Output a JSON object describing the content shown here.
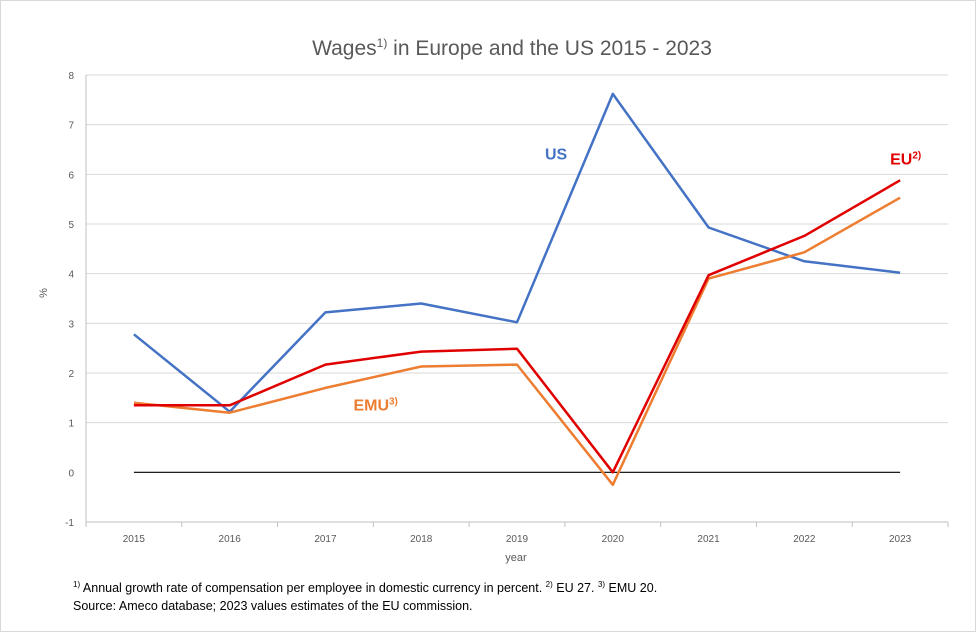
{
  "chart_data": {
    "type": "line",
    "title": "Wages",
    "title_sup": "1)",
    "title_rest": " in Europe and the US 2015 - 2023",
    "xlabel": "year",
    "ylabel": "%",
    "ylim": [
      -1,
      8
    ],
    "yticks": [
      "-1",
      "0",
      "1",
      "2",
      "3",
      "4",
      "5",
      "6",
      "7",
      "8"
    ],
    "categories": [
      "2015",
      "2016",
      "2017",
      "2018",
      "2019",
      "2020",
      "2021",
      "2022",
      "2023"
    ],
    "grid": "horizontal",
    "series": [
      {
        "name": "US",
        "sup": "",
        "color": "#4472c4",
        "values": [
          2.78,
          1.22,
          3.22,
          3.4,
          3.02,
          7.62,
          4.93,
          4.25,
          4.02
        ]
      },
      {
        "name": "EMU",
        "sup": "3)",
        "color": "#ed7d31",
        "values": [
          1.4,
          1.2,
          1.7,
          2.13,
          2.17,
          -0.25,
          3.9,
          4.43,
          5.53
        ]
      },
      {
        "name": "EU",
        "sup": "2)",
        "color": "#e00000",
        "values": [
          1.35,
          1.35,
          2.17,
          2.43,
          2.49,
          0.0,
          3.97,
          4.76,
          5.88
        ]
      }
    ]
  },
  "footnotes": {
    "line1": [
      {
        "sup": "1)",
        "text": " Annual growth rate of compensation per employee in domestic currency in percent. "
      },
      {
        "sup": "2)",
        "text": " EU 27.  "
      },
      {
        "sup": "3)",
        "text": " EMU  20."
      }
    ],
    "line2": "Source: Ameco database; 2023  values estimates of the EU commission."
  }
}
